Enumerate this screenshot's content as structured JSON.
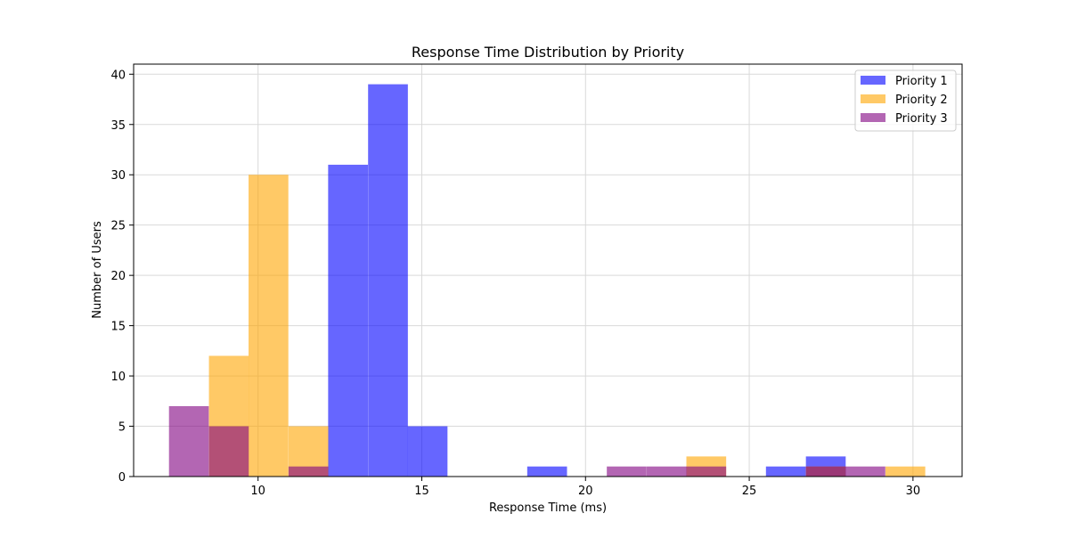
{
  "chart_data": {
    "type": "bar",
    "title": "Response Time Distribution by Priority",
    "xlabel": "Response Time (ms)",
    "ylabel": "Number of Users",
    "xlim": [
      6.2,
      31.5
    ],
    "ylim": [
      0,
      41
    ],
    "xticks": [
      10,
      15,
      20,
      25,
      30
    ],
    "yticks": [
      0,
      5,
      10,
      15,
      20,
      25,
      30,
      35,
      40
    ],
    "grid": true,
    "legend_position": "top-right",
    "bin_width": 1.215,
    "series": [
      {
        "name": "Priority 1",
        "color": "#0000ff",
        "opacity": 0.6,
        "bins": [
          {
            "x0": 12.14,
            "count": 31
          },
          {
            "x0": 13.36,
            "count": 39
          },
          {
            "x0": 14.57,
            "count": 5
          },
          {
            "x0": 18.22,
            "count": 1
          },
          {
            "x0": 25.51,
            "count": 1
          },
          {
            "x0": 26.73,
            "count": 2
          }
        ]
      },
      {
        "name": "Priority 2",
        "color": "#ffa500",
        "opacity": 0.6,
        "bins": [
          {
            "x0": 8.5,
            "count": 12
          },
          {
            "x0": 9.71,
            "count": 30
          },
          {
            "x0": 10.93,
            "count": 5
          },
          {
            "x0": 23.08,
            "count": 2
          },
          {
            "x0": 26.73,
            "count": 1
          },
          {
            "x0": 29.16,
            "count": 1
          }
        ]
      },
      {
        "name": "Priority 3",
        "color": "#800080",
        "opacity": 0.6,
        "bins": [
          {
            "x0": 7.28,
            "count": 7
          },
          {
            "x0": 8.5,
            "count": 5
          },
          {
            "x0": 10.93,
            "count": 1
          },
          {
            "x0": 20.65,
            "count": 1
          },
          {
            "x0": 21.87,
            "count": 1
          },
          {
            "x0": 23.08,
            "count": 1
          },
          {
            "x0": 26.73,
            "count": 1
          },
          {
            "x0": 27.94,
            "count": 1
          }
        ]
      }
    ]
  }
}
